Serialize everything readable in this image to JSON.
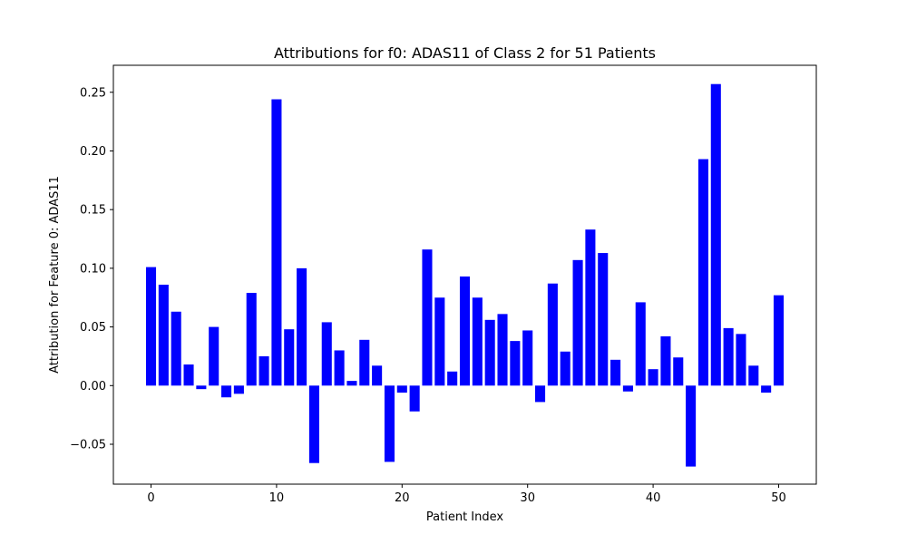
{
  "chart_data": {
    "type": "bar",
    "title": "Attributions for f0: ADAS11 of Class 2 for 51 Patients",
    "xlabel": "Patient Index",
    "ylabel": "Attribution for Feature 0: ADAS11",
    "bar_color": "#0000ff",
    "xlim": [
      -3,
      53
    ],
    "ylim": [
      -0.084,
      0.273
    ],
    "xticks": [
      0,
      10,
      20,
      30,
      40,
      50
    ],
    "yticks": [
      -0.05,
      0.0,
      0.05,
      0.1,
      0.15,
      0.2,
      0.25
    ],
    "xtick_labels": [
      "0",
      "10",
      "20",
      "30",
      "40",
      "50"
    ],
    "ytick_labels": [
      "−0.05",
      "0.00",
      "0.05",
      "0.10",
      "0.15",
      "0.20",
      "0.25"
    ],
    "grid": false,
    "x": [
      0,
      1,
      2,
      3,
      4,
      5,
      6,
      7,
      8,
      9,
      10,
      11,
      12,
      13,
      14,
      15,
      16,
      17,
      18,
      19,
      20,
      21,
      22,
      23,
      24,
      25,
      26,
      27,
      28,
      29,
      30,
      31,
      32,
      33,
      34,
      35,
      36,
      37,
      38,
      39,
      40,
      41,
      42,
      43,
      44,
      45,
      46,
      47,
      48,
      49,
      50
    ],
    "values": [
      0.101,
      0.086,
      0.063,
      0.018,
      -0.003,
      0.05,
      -0.01,
      -0.007,
      0.079,
      0.025,
      0.244,
      0.048,
      0.1,
      -0.066,
      0.054,
      0.03,
      0.004,
      0.039,
      0.017,
      -0.065,
      -0.006,
      -0.022,
      0.116,
      0.075,
      0.012,
      0.093,
      0.075,
      0.056,
      0.061,
      0.038,
      0.047,
      -0.014,
      0.087,
      0.029,
      0.107,
      0.133,
      0.113,
      0.022,
      -0.005,
      0.071,
      0.014,
      0.042,
      0.024,
      -0.069,
      0.193,
      0.257,
      0.049,
      0.044,
      0.017,
      -0.006,
      0.077
    ]
  }
}
